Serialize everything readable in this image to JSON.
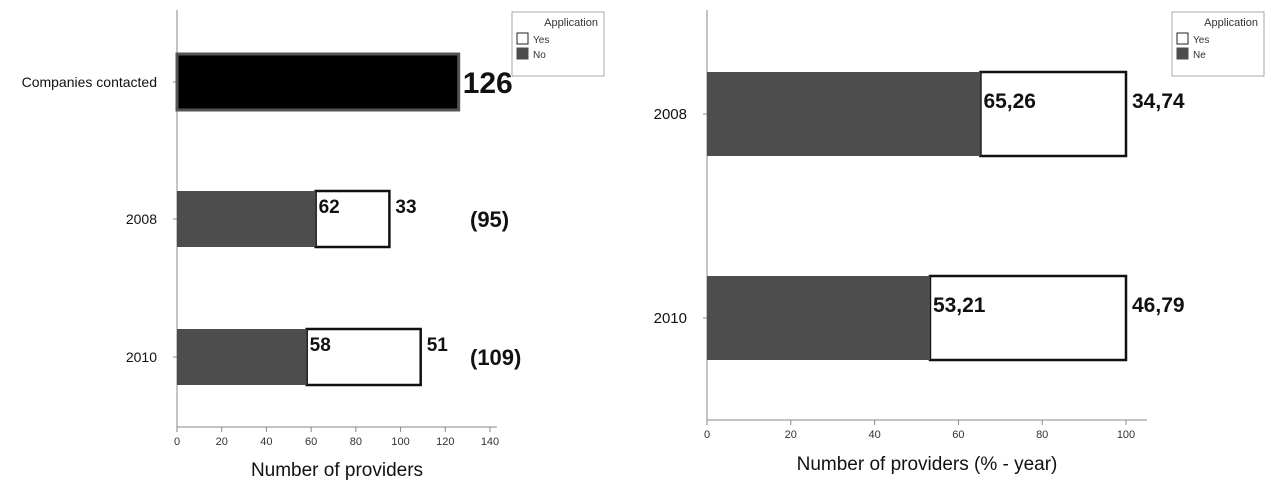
{
  "colors": {
    "no": "#4d4d4d",
    "yes": "#ffffff",
    "companies": "#000000",
    "axis": "#888888",
    "text": "#111111"
  },
  "chart_data": [
    {
      "type": "bar",
      "orientation": "horizontal",
      "stacked": true,
      "categories": [
        "Companies contacted",
        "2008",
        "2010"
      ],
      "series": [
        {
          "name": "No",
          "values": [
            126,
            62,
            58
          ]
        },
        {
          "name": "Yes",
          "values": [
            0,
            33,
            51
          ]
        }
      ],
      "value_labels": [
        {
          "category": "Companies contacted",
          "no": "",
          "yes": "",
          "total": "126"
        },
        {
          "category": "2008",
          "no": "62",
          "yes": "33",
          "total": "(95)"
        },
        {
          "category": "2010",
          "no": "58",
          "yes": "51",
          "total": "(109)"
        }
      ],
      "xlabel": "Number of providers",
      "ylabel": "",
      "xlim": [
        0,
        140
      ],
      "xticks": [
        "0",
        "20",
        "40",
        "60",
        "80",
        "100",
        "120",
        "140"
      ],
      "legend": {
        "title": "Application",
        "entries": [
          "Yes",
          "No"
        ],
        "position": "top-right"
      }
    },
    {
      "type": "bar",
      "orientation": "horizontal",
      "stacked": true,
      "categories": [
        "2008",
        "2010"
      ],
      "series": [
        {
          "name": "Ne",
          "values": [
            65.26,
            53.21
          ]
        },
        {
          "name": "Yes",
          "values": [
            34.74,
            46.79
          ]
        }
      ],
      "value_labels": [
        {
          "category": "2008",
          "no": "65,26",
          "yes": "34,74"
        },
        {
          "category": "2010",
          "no": "53,21",
          "yes": "46,79"
        }
      ],
      "xlabel": "Number of providers (% - year)",
      "ylabel": "",
      "xlim": [
        0,
        100
      ],
      "xticks": [
        "0",
        "20",
        "40",
        "60",
        "80",
        "100"
      ],
      "legend": {
        "title": "Application",
        "entries": [
          "Yes",
          "Ne"
        ],
        "position": "top-right"
      }
    }
  ]
}
